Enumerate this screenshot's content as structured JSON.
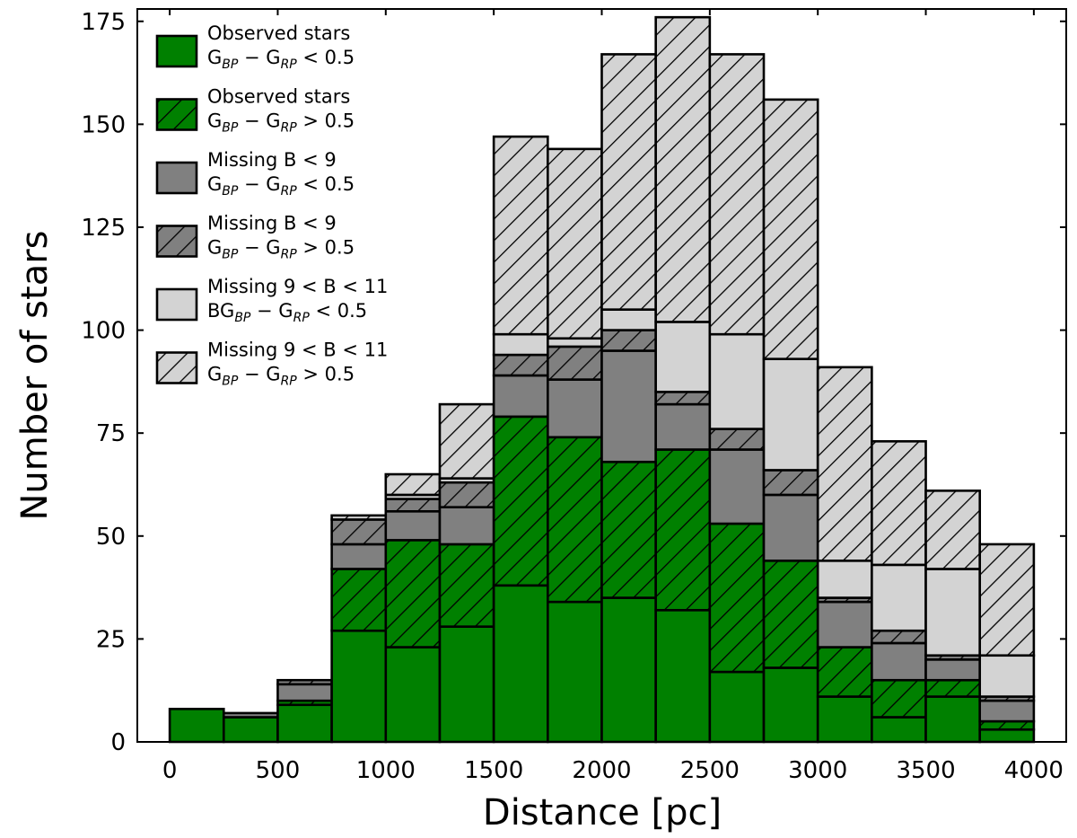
{
  "chart_data": {
    "type": "bar",
    "stacked": true,
    "xlabel": "Distance [pc]",
    "ylabel": "Number of stars",
    "xlim": [
      -150,
      4150
    ],
    "ylim": [
      0,
      178
    ],
    "bin_width": 250,
    "x_ticks": [
      0,
      500,
      1000,
      1500,
      2000,
      2500,
      3000,
      3500,
      4000
    ],
    "y_ticks": [
      0,
      25,
      50,
      75,
      100,
      125,
      150,
      175
    ],
    "bins": [
      0,
      250,
      500,
      750,
      1000,
      1250,
      1500,
      1750,
      2000,
      2250,
      2500,
      2750,
      3000,
      3250,
      3500,
      3750
    ],
    "series": [
      {
        "key": "obs_blue",
        "values": [
          8,
          6,
          9,
          27,
          23,
          28,
          38,
          34,
          35,
          32,
          17,
          18,
          11,
          6,
          11,
          3
        ]
      },
      {
        "key": "obs_red",
        "values": [
          0,
          0,
          1,
          15,
          26,
          20,
          41,
          40,
          33,
          39,
          36,
          26,
          12,
          9,
          4,
          2
        ]
      },
      {
        "key": "miss_b9_blue",
        "values": [
          0,
          1,
          4,
          6,
          7,
          9,
          10,
          14,
          27,
          11,
          18,
          16,
          11,
          9,
          5,
          5
        ]
      },
      {
        "key": "miss_b9_red",
        "values": [
          0,
          0,
          1,
          6,
          3,
          6,
          5,
          8,
          5,
          3,
          5,
          6,
          1,
          3,
          1,
          1
        ]
      },
      {
        "key": "miss_b911_blue",
        "values": [
          0,
          0,
          0,
          0,
          1,
          1,
          5,
          2,
          5,
          17,
          23,
          27,
          9,
          16,
          21,
          10
        ]
      },
      {
        "key": "miss_b911_red",
        "values": [
          0,
          0,
          0,
          1,
          5,
          18,
          48,
          46,
          62,
          74,
          68,
          63,
          47,
          30,
          19,
          27
        ]
      }
    ],
    "legend": [
      {
        "line1": "Observed stars",
        "line2": {
          "pre": "G",
          "s1": "BP",
          "mid": " − G",
          "s2": "RP",
          "post": " < 0.5"
        }
      },
      {
        "line1": "Observed stars",
        "line2": {
          "pre": "G",
          "s1": "BP",
          "mid": " − G",
          "s2": "RP",
          "post": " > 0.5"
        }
      },
      {
        "line1": "Missing  B < 9",
        "line2": {
          "pre": "G",
          "s1": "BP",
          "mid": " − G",
          "s2": "RP",
          "post": " < 0.5"
        }
      },
      {
        "line1": "Missing  B < 9",
        "line2": {
          "pre": "G",
          "s1": "BP",
          "mid": " − G",
          "s2": "RP",
          "post": " > 0.5"
        }
      },
      {
        "line1": "Missing  9 < B < 11",
        "line2": {
          "pre": "BG",
          "s1": "BP",
          "mid": " − G",
          "s2": "RP",
          "post": " < 0.5"
        }
      },
      {
        "line1": "Missing  9 < B < 11",
        "line2": {
          "pre": "G",
          "s1": "BP",
          "mid": " − G",
          "s2": "RP",
          "post": " > 0.5"
        }
      }
    ],
    "legend_position": "top-left",
    "grid": false,
    "colors": {
      "observed": "#008000",
      "missing_bright": "#808080",
      "missing_faint": "#d3d3d3",
      "edge": "#000000",
      "hatch": "#000000"
    },
    "hatched": [
      false,
      true,
      false,
      true,
      false,
      true
    ]
  }
}
